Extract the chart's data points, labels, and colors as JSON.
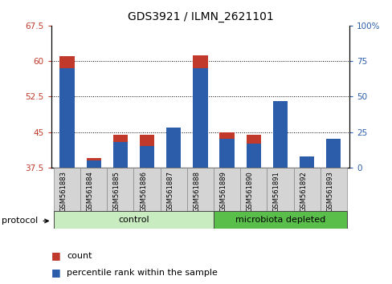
{
  "title": "GDS3921 / ILMN_2621101",
  "samples": [
    "GSM561883",
    "GSM561884",
    "GSM561885",
    "GSM561886",
    "GSM561887",
    "GSM561888",
    "GSM561889",
    "GSM561890",
    "GSM561891",
    "GSM561892",
    "GSM561893"
  ],
  "count_values": [
    61.0,
    39.5,
    44.5,
    44.5,
    45.0,
    61.2,
    45.0,
    44.5,
    51.0,
    39.5,
    43.5
  ],
  "percentile_values": [
    70,
    5,
    18,
    15,
    28,
    70,
    20,
    17,
    47,
    8,
    20
  ],
  "ylim_left": [
    37.5,
    67.5
  ],
  "ylim_right": [
    0,
    100
  ],
  "yticks_left": [
    37.5,
    45.0,
    52.5,
    60.0,
    67.5
  ],
  "yticks_right": [
    0,
    25,
    50,
    75,
    100
  ],
  "bar_color_red": "#c0392b",
  "bar_color_blue": "#2c5daa",
  "bar_width": 0.55,
  "control_label": "control",
  "microbiota_label": "microbiota depleted",
  "protocol_label": "protocol",
  "legend_count": "count",
  "legend_pct": "percentile rank within the sample",
  "n_control": 6,
  "bg_color_plot": "#ffffff",
  "title_fontsize": 10,
  "tick_fontsize": 7.5,
  "legend_fontsize": 8,
  "proto_fontsize": 8
}
